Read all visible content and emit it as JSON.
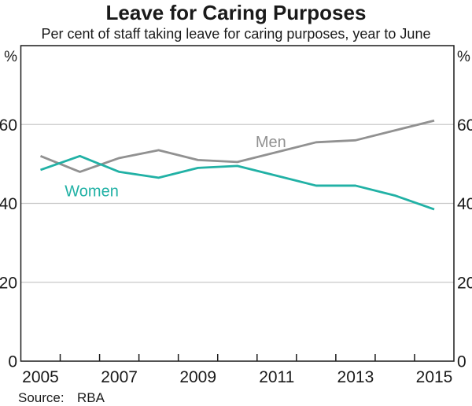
{
  "title": "Leave for Caring Purposes",
  "subtitle": "Per cent of staff taking leave for caring purposes, year to June",
  "source": {
    "label": "Source:",
    "value": "RBA"
  },
  "colors": {
    "men": "#919191",
    "women": "#21b1a5",
    "grid": "#c9c9c9",
    "frame": "#1a1a1a",
    "text": "#1a1a1a"
  },
  "chart_data": {
    "type": "line",
    "title": "Leave for Caring Purposes",
    "subtitle": "Per cent of staff taking leave for caring purposes, year to June",
    "x": [
      2005,
      2006,
      2007,
      2008,
      2009,
      2010,
      2011,
      2012,
      2013,
      2014,
      2015
    ],
    "series": [
      {
        "name": "Men",
        "color": "#919191",
        "values": [
          52,
          48,
          51.5,
          53.5,
          51,
          50.5,
          53,
          55.5,
          56,
          58.5,
          61
        ]
      },
      {
        "name": "Women",
        "color": "#21b1a5",
        "values": [
          48.5,
          52,
          48,
          46.5,
          49,
          49.5,
          47,
          44.5,
          44.5,
          42,
          38.5
        ]
      }
    ],
    "ylim": [
      0,
      80
    ],
    "yticks": [
      0,
      20,
      40,
      60
    ],
    "ytick_labels_both_sides": true,
    "xtick_labels": [
      2005,
      2007,
      2009,
      2011,
      2013,
      2015
    ],
    "y_unit_left": "%",
    "y_unit_right": "%",
    "grid": "horizontal",
    "legend": "inline-labels",
    "annotations": [
      {
        "text": "Men",
        "x": 2010.85,
        "y": 55.7,
        "color": "#919191"
      },
      {
        "text": "Women",
        "x": 2006.3,
        "y": 43.2,
        "color": "#21b1a5"
      }
    ]
  }
}
